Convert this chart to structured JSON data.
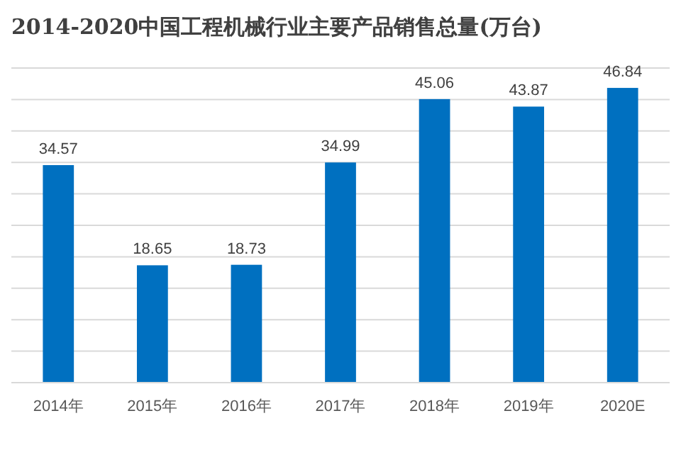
{
  "chart_data": {
    "type": "bar",
    "title": "2014-2020中国工程机械行业主要产品销售总量(万台)",
    "categories": [
      "2014年",
      "2015年",
      "2016年",
      "2017年",
      "2018年",
      "2019年",
      "2020E"
    ],
    "values": [
      34.57,
      18.65,
      18.73,
      34.99,
      45.06,
      43.87,
      46.84
    ],
    "color": "#0070c0",
    "data_labels": true,
    "grid": "y",
    "ylim": [
      0,
      50
    ],
    "yticks": [
      {
        "value": 0,
        "label": null
      },
      {
        "value": 5,
        "label": null
      },
      {
        "value": 10,
        "label": null
      },
      {
        "value": 15,
        "label": null
      },
      {
        "value": 20,
        "label": null
      },
      {
        "value": 25,
        "label": null
      },
      {
        "value": 30,
        "label": null
      },
      {
        "value": 35,
        "label": null
      },
      {
        "value": 40,
        "label": null
      },
      {
        "value": 45,
        "label": null
      },
      {
        "value": 50,
        "label": null
      }
    ]
  }
}
